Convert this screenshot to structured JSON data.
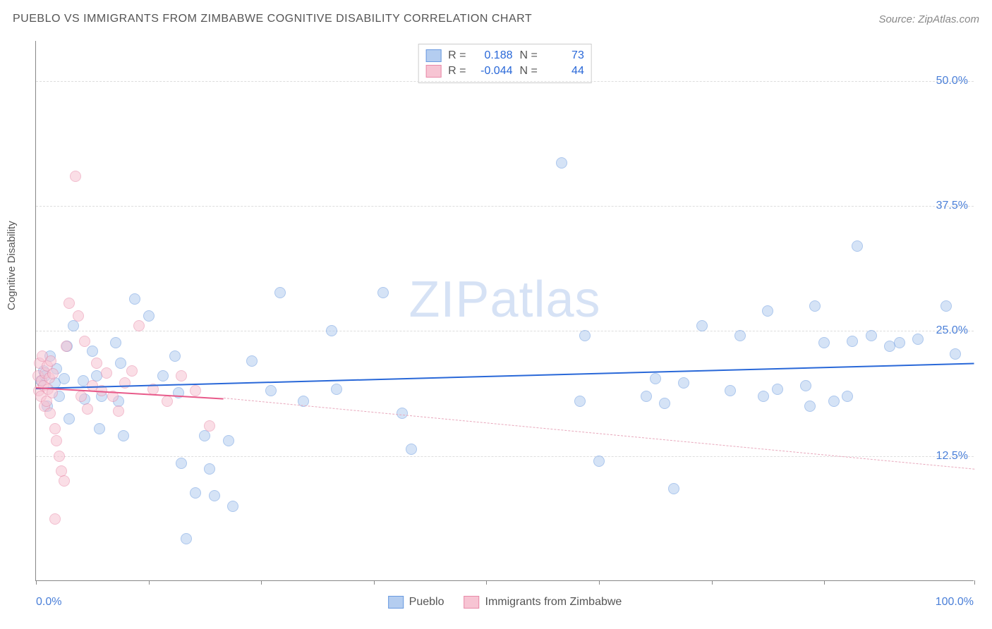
{
  "title": "PUEBLO VS IMMIGRANTS FROM ZIMBABWE COGNITIVE DISABILITY CORRELATION CHART",
  "source": "Source: ZipAtlas.com",
  "ylabel": "Cognitive Disability",
  "watermark_a": "ZIP",
  "watermark_b": "atlas",
  "chart": {
    "type": "scatter",
    "xlim": [
      0,
      100
    ],
    "ylim": [
      0,
      54
    ],
    "x_ticks": [
      0,
      12,
      24,
      36,
      48,
      60,
      72,
      84,
      100
    ],
    "x_tick_labels": {
      "0": "0.0%",
      "100": "100.0%"
    },
    "y_gridlines": [
      12.5,
      25.0,
      37.5,
      50.0
    ],
    "y_tick_labels": [
      "12.5%",
      "25.0%",
      "37.5%",
      "50.0%"
    ],
    "background_color": "#ffffff",
    "grid_color": "#dddddd",
    "axis_color": "#888888",
    "tick_label_color": "#4a7fd8",
    "point_radius": 8,
    "point_opacity": 0.55,
    "series": [
      {
        "name": "Pueblo",
        "color_fill": "#b4cdf0",
        "color_stroke": "#6a9ae0",
        "R": "0.188",
        "N": "73",
        "trend": {
          "x1": 0,
          "y1": 19.3,
          "x2": 100,
          "y2": 21.8,
          "color": "#2968d8",
          "width": 2.5,
          "dash": "solid"
        },
        "points": [
          [
            0.5,
            20
          ],
          [
            0.8,
            21
          ],
          [
            1,
            20.5
          ],
          [
            1.2,
            17.5
          ],
          [
            1.5,
            22.5
          ],
          [
            2,
            19.8
          ],
          [
            2.2,
            21.2
          ],
          [
            2.5,
            18.5
          ],
          [
            3,
            20.2
          ],
          [
            3.3,
            23.5
          ],
          [
            3.5,
            16.2
          ],
          [
            4,
            25.5
          ],
          [
            5,
            20
          ],
          [
            5.2,
            18.2
          ],
          [
            6,
            23
          ],
          [
            6.5,
            20.5
          ],
          [
            6.8,
            15.2
          ],
          [
            7,
            18.5
          ],
          [
            8.5,
            23.8
          ],
          [
            8.8,
            18
          ],
          [
            9,
            21.8
          ],
          [
            9.3,
            14.5
          ],
          [
            10.5,
            28.2
          ],
          [
            12,
            26.5
          ],
          [
            13.5,
            20.5
          ],
          [
            14.8,
            22.5
          ],
          [
            15.2,
            18.8
          ],
          [
            15.5,
            11.8
          ],
          [
            16,
            4.2
          ],
          [
            17,
            8.8
          ],
          [
            18,
            14.5
          ],
          [
            18.5,
            11.2
          ],
          [
            19,
            8.5
          ],
          [
            20.5,
            14
          ],
          [
            21,
            7.5
          ],
          [
            23,
            22
          ],
          [
            25,
            19
          ],
          [
            26,
            28.8
          ],
          [
            28.5,
            18
          ],
          [
            31.5,
            25
          ],
          [
            32,
            19.2
          ],
          [
            37,
            28.8
          ],
          [
            39,
            16.8
          ],
          [
            40,
            13.2
          ],
          [
            56,
            41.8
          ],
          [
            58,
            18
          ],
          [
            58.5,
            24.5
          ],
          [
            60,
            12
          ],
          [
            65,
            18.5
          ],
          [
            66,
            20.2
          ],
          [
            67,
            17.8
          ],
          [
            68,
            9.2
          ],
          [
            69,
            19.8
          ],
          [
            71,
            25.5
          ],
          [
            74,
            19
          ],
          [
            75,
            24.5
          ],
          [
            77.5,
            18.5
          ],
          [
            78,
            27
          ],
          [
            79,
            19.2
          ],
          [
            82,
            19.5
          ],
          [
            82.5,
            17.5
          ],
          [
            83,
            27.5
          ],
          [
            84,
            23.8
          ],
          [
            85,
            18
          ],
          [
            86.5,
            18.5
          ],
          [
            87,
            24
          ],
          [
            87.5,
            33.5
          ],
          [
            89,
            24.5
          ],
          [
            91,
            23.5
          ],
          [
            92,
            23.8
          ],
          [
            94,
            24.2
          ],
          [
            97,
            27.5
          ],
          [
            98,
            22.7
          ]
        ]
      },
      {
        "name": "Immigrants from Zimbabwe",
        "color_fill": "#f7c4d3",
        "color_stroke": "#e88aa8",
        "R": "-0.044",
        "N": "44",
        "trend_solid": {
          "x1": 0,
          "y1": 19.4,
          "x2": 20,
          "y2": 18.3,
          "color": "#e85a8a",
          "width": 2.5
        },
        "trend_dash": {
          "x1": 20,
          "y1": 18.3,
          "x2": 100,
          "y2": 11.2,
          "color": "#e8a8bc",
          "width": 1.5
        },
        "points": [
          [
            0.2,
            20.5
          ],
          [
            0.3,
            19
          ],
          [
            0.4,
            21.8
          ],
          [
            0.5,
            18.5
          ],
          [
            0.6,
            20
          ],
          [
            0.7,
            22.5
          ],
          [
            0.8,
            19.5
          ],
          [
            0.9,
            17.5
          ],
          [
            1,
            20.8
          ],
          [
            1.1,
            18
          ],
          [
            1.2,
            21.5
          ],
          [
            1.3,
            19.2
          ],
          [
            1.4,
            20.3
          ],
          [
            1.5,
            16.8
          ],
          [
            1.6,
            22
          ],
          [
            1.7,
            18.8
          ],
          [
            1.8,
            20.7
          ],
          [
            2,
            15.2
          ],
          [
            2.2,
            14
          ],
          [
            2.5,
            12.5
          ],
          [
            2.7,
            11
          ],
          [
            3,
            10
          ],
          [
            3.2,
            23.5
          ],
          [
            3.5,
            27.8
          ],
          [
            4.2,
            40.5
          ],
          [
            4.5,
            26.5
          ],
          [
            4.8,
            18.5
          ],
          [
            5.2,
            24
          ],
          [
            5.5,
            17.2
          ],
          [
            6,
            19.5
          ],
          [
            6.5,
            21.8
          ],
          [
            7,
            19
          ],
          [
            7.5,
            20.8
          ],
          [
            8.2,
            18.5
          ],
          [
            8.8,
            17
          ],
          [
            9.5,
            19.8
          ],
          [
            10.2,
            21
          ],
          [
            11,
            25.5
          ],
          [
            12.5,
            19.2
          ],
          [
            14,
            18
          ],
          [
            15.5,
            20.5
          ],
          [
            17,
            19
          ],
          [
            18.5,
            15.5
          ],
          [
            2,
            6.2
          ]
        ]
      }
    ]
  },
  "legend_bottom": [
    {
      "label": "Pueblo",
      "fill": "#b4cdf0",
      "stroke": "#6a9ae0"
    },
    {
      "label": "Immigrants from Zimbabwe",
      "fill": "#f7c4d3",
      "stroke": "#e88aa8"
    }
  ]
}
